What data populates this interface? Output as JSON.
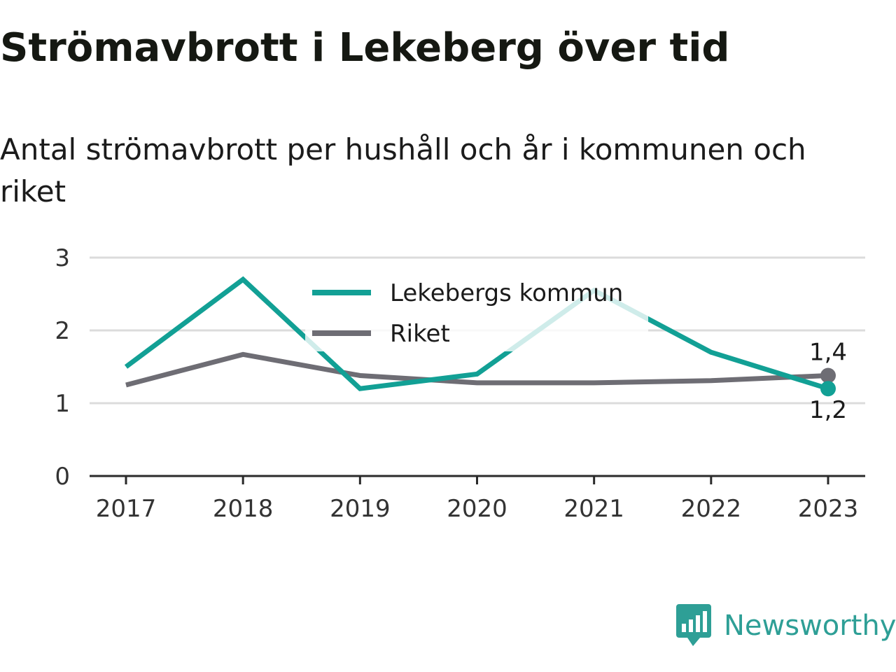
{
  "header": {
    "title": "Strömavbrott i Lekeberg över tid",
    "subtitle": "Antal strömavbrott per hushåll och år i kommunen och riket"
  },
  "brand": {
    "name": "Newsworthy",
    "icon": "newsworthy-logo-icon",
    "color": "#2e9f96"
  },
  "chart_data": {
    "type": "line",
    "x": [
      "2017",
      "2018",
      "2019",
      "2020",
      "2021",
      "2022",
      "2023"
    ],
    "series": [
      {
        "name": "Lekebergs kommun",
        "color": "#12a095",
        "values": [
          1.5,
          2.7,
          1.2,
          1.4,
          2.55,
          1.7,
          1.2
        ],
        "end_label": "1,2"
      },
      {
        "name": "Riket",
        "color": "#6e6d74",
        "values": [
          1.25,
          1.67,
          1.38,
          1.28,
          1.28,
          1.31,
          1.38
        ],
        "end_label": "1,4"
      }
    ],
    "yticks": [
      "0",
      "1",
      "2",
      "3"
    ],
    "ylim": [
      0,
      3
    ],
    "grid": true,
    "legend_position": "top-center"
  }
}
